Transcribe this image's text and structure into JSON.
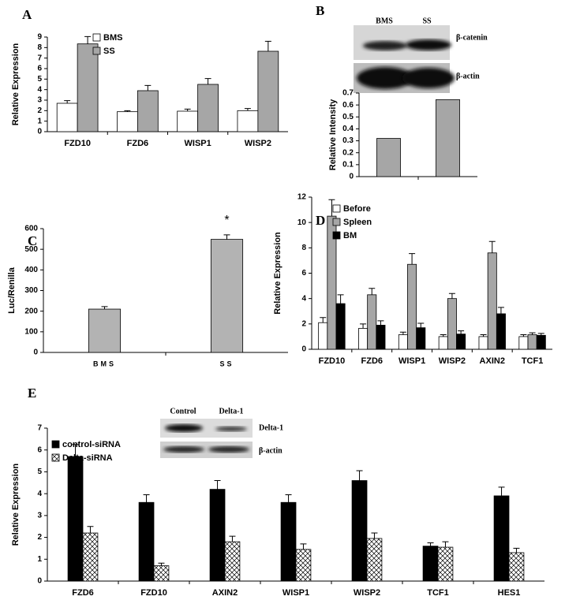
{
  "chart_data": [
    {
      "type": "bar",
      "panel": "A",
      "ylabel": "Relative Expression",
      "categories": [
        "FZD10",
        "FZD6",
        "WISP1",
        "WISP2"
      ],
      "series": [
        {
          "name": "BMS",
          "color": "#ffffff",
          "values": [
            2.7,
            1.9,
            1.95,
            2.0
          ],
          "errors": [
            0.25,
            0.1,
            0.2,
            0.2
          ]
        },
        {
          "name": "SS",
          "color": "#a6a6a6",
          "values": [
            8.35,
            3.9,
            4.5,
            7.65
          ],
          "errors": [
            0.7,
            0.5,
            0.55,
            0.95
          ]
        }
      ],
      "ylim": [
        0,
        9
      ],
      "yticks": [
        0,
        1,
        2,
        3,
        4,
        5,
        6,
        7,
        8,
        9
      ],
      "legend": "upper left",
      "grid": false
    },
    {
      "type": "bar",
      "panel": "B",
      "ylabel": "Relative Intensity",
      "categories": [
        null,
        null
      ],
      "values": [
        0.32,
        0.645
      ],
      "color": "#a6a6a6",
      "ylim": [
        0,
        0.7
      ],
      "yticks": [
        0,
        0.1,
        0.2,
        0.3,
        0.4,
        0.5,
        0.6,
        0.7
      ],
      "grid": false
    },
    {
      "type": "bar",
      "panel": "C",
      "ylabel": "Luc/Renilla",
      "annotation": "*",
      "categories": [
        "BMS",
        "SS"
      ],
      "values": [
        210,
        548
      ],
      "errors": [
        12,
        22
      ],
      "color": "#b3b3b3",
      "ylim": [
        0,
        600
      ],
      "yticks": [
        0,
        100,
        200,
        300,
        400,
        500,
        600
      ],
      "grid": false
    },
    {
      "type": "bar",
      "panel": "D",
      "ylabel": "Relative Expression",
      "categories": [
        "FZD10",
        "FZD6",
        "WISP1",
        "WISP2",
        "AXIN2",
        "TCF1"
      ],
      "series": [
        {
          "name": "Before",
          "color": "#ffffff",
          "values": [
            2.1,
            1.65,
            1.15,
            1.0,
            1.0,
            1.0
          ],
          "errors": [
            0.4,
            0.35,
            0.2,
            0.15,
            0.15,
            0.15
          ]
        },
        {
          "name": "Spleen",
          "color": "#a6a6a6",
          "values": [
            10.5,
            4.3,
            6.7,
            4.0,
            7.6,
            1.15
          ],
          "errors": [
            1.3,
            0.5,
            0.85,
            0.4,
            0.9,
            0.15
          ]
        },
        {
          "name": "BM",
          "color": "#000000",
          "values": [
            3.6,
            1.9,
            1.7,
            1.2,
            2.8,
            1.1
          ],
          "errors": [
            0.7,
            0.35,
            0.35,
            0.25,
            0.5,
            0.15
          ]
        }
      ],
      "ylim": [
        0,
        12
      ],
      "yticks": [
        0,
        2,
        4,
        6,
        8,
        10,
        12
      ],
      "legend": "upper left",
      "grid": false
    },
    {
      "type": "bar",
      "panel": "E",
      "ylabel": "Relative Expression",
      "categories": [
        "FZD6",
        "FZD10",
        "AXIN2",
        "WISP1",
        "WISP2",
        "TCF1",
        "HES1"
      ],
      "series": [
        {
          "name": "control-siRNA",
          "color": "#000000",
          "values": [
            5.7,
            3.6,
            4.2,
            3.6,
            4.6,
            1.6,
            3.9
          ],
          "errors": [
            0.55,
            0.35,
            0.4,
            0.35,
            0.45,
            0.15,
            0.4
          ]
        },
        {
          "name": "Delta-siRNA",
          "color": "#ffffff",
          "hatch": true,
          "values": [
            2.2,
            0.7,
            1.8,
            1.45,
            1.95,
            1.55,
            1.3
          ],
          "errors": [
            0.3,
            0.12,
            0.25,
            0.25,
            0.25,
            0.25,
            0.2
          ]
        }
      ],
      "ylim": [
        0,
        7
      ],
      "yticks": [
        0,
        1,
        2,
        3,
        4,
        5,
        6,
        7
      ],
      "legend": "upper left",
      "grid": false
    }
  ],
  "blots": [
    {
      "lanes": [
        "BMS",
        "SS"
      ],
      "bands": [
        "β-catenin",
        "β-actin"
      ]
    },
    {
      "lanes": [
        "Control",
        "Delta-1"
      ],
      "bands": [
        "Delta-1",
        "β-actin"
      ]
    }
  ]
}
